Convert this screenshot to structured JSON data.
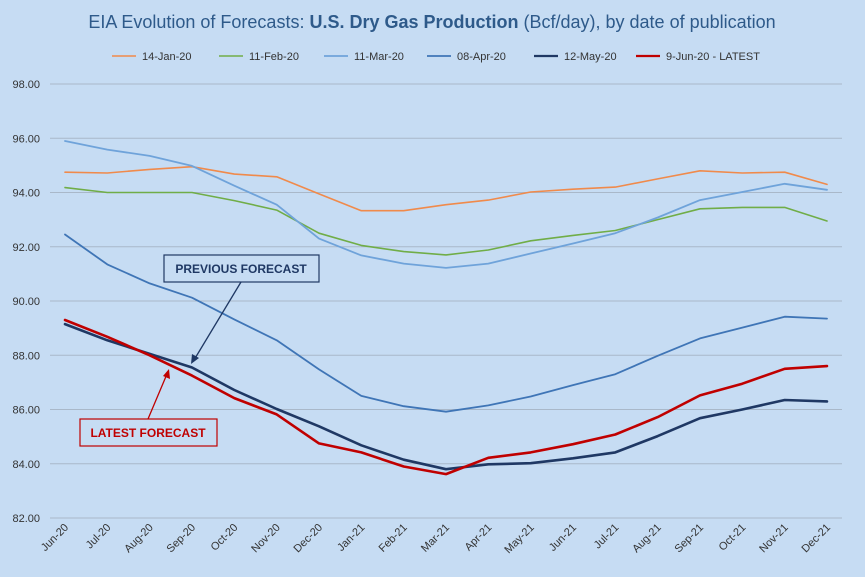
{
  "chart_data": {
    "type": "line",
    "title": {
      "prefix": "EIA Evolution of Forecasts: ",
      "bold": "U.S. Dry Gas Production",
      "suffix": " (Bcf/day), by date of publication"
    },
    "categories": [
      "Jun-20",
      "Jul-20",
      "Aug-20",
      "Sep-20",
      "Oct-20",
      "Nov-20",
      "Dec-20",
      "Jan-21",
      "Feb-21",
      "Mar-21",
      "Apr-21",
      "May-21",
      "Jun-21",
      "Jul-21",
      "Aug-21",
      "Sep-21",
      "Oct-21",
      "Nov-21",
      "Dec-21"
    ],
    "ylim": [
      82,
      98
    ],
    "yticks": [
      "82.00",
      "84.00",
      "86.00",
      "88.00",
      "90.00",
      "92.00",
      "94.00",
      "96.00",
      "98.00"
    ],
    "grid": true,
    "legend_position": "top",
    "series": [
      {
        "name": "14-Jan-20",
        "color": "#f08a4b",
        "width": 1.6,
        "values": [
          94.75,
          94.72,
          94.85,
          94.95,
          94.68,
          94.58,
          93.95,
          93.33,
          93.33,
          93.55,
          93.72,
          94.02,
          94.12,
          94.2,
          94.5,
          94.8,
          94.72,
          94.75,
          94.3
        ]
      },
      {
        "name": "11-Feb-20",
        "color": "#70ad47",
        "width": 1.6,
        "values": [
          94.18,
          94.0,
          94.0,
          94.0,
          93.7,
          93.35,
          92.5,
          92.05,
          91.82,
          91.7,
          91.88,
          92.22,
          92.42,
          92.6,
          93.0,
          93.4,
          93.45,
          93.45,
          92.95
        ]
      },
      {
        "name": "11-Mar-20",
        "color": "#6fa3da",
        "width": 1.8,
        "values": [
          95.9,
          95.58,
          95.35,
          94.98,
          94.25,
          93.55,
          92.3,
          91.68,
          91.38,
          91.22,
          91.38,
          91.75,
          92.12,
          92.5,
          93.08,
          93.72,
          94.02,
          94.32,
          94.1
        ]
      },
      {
        "name": "08-Apr-20",
        "color": "#3f75b6",
        "width": 1.8,
        "values": [
          92.45,
          91.35,
          90.65,
          90.12,
          89.32,
          88.55,
          87.48,
          86.5,
          86.12,
          85.92,
          86.15,
          86.48,
          86.9,
          87.3,
          87.98,
          88.62,
          89.02,
          89.42,
          89.35
        ]
      },
      {
        "name": "12-May-20",
        "color": "#1f3864",
        "width": 2.6,
        "values": [
          89.15,
          88.55,
          88.05,
          87.55,
          86.72,
          86.02,
          85.38,
          84.68,
          84.15,
          83.8,
          83.98,
          84.02,
          84.2,
          84.42,
          85.02,
          85.68,
          86.0,
          86.35,
          86.3
        ]
      },
      {
        "name": "9-Jun-20 - LATEST",
        "color": "#c00000",
        "width": 2.6,
        "values": [
          89.3,
          88.68,
          88.0,
          87.25,
          86.42,
          85.82,
          84.75,
          84.42,
          83.9,
          83.62,
          84.22,
          84.42,
          84.72,
          85.08,
          85.72,
          86.52,
          86.95,
          87.5,
          87.6
        ]
      }
    ],
    "annotations": [
      {
        "text": "PREVIOUS FORECAST",
        "color": "#1f3864"
      },
      {
        "text": "LATEST FORECAST",
        "color": "#c00000"
      }
    ]
  }
}
